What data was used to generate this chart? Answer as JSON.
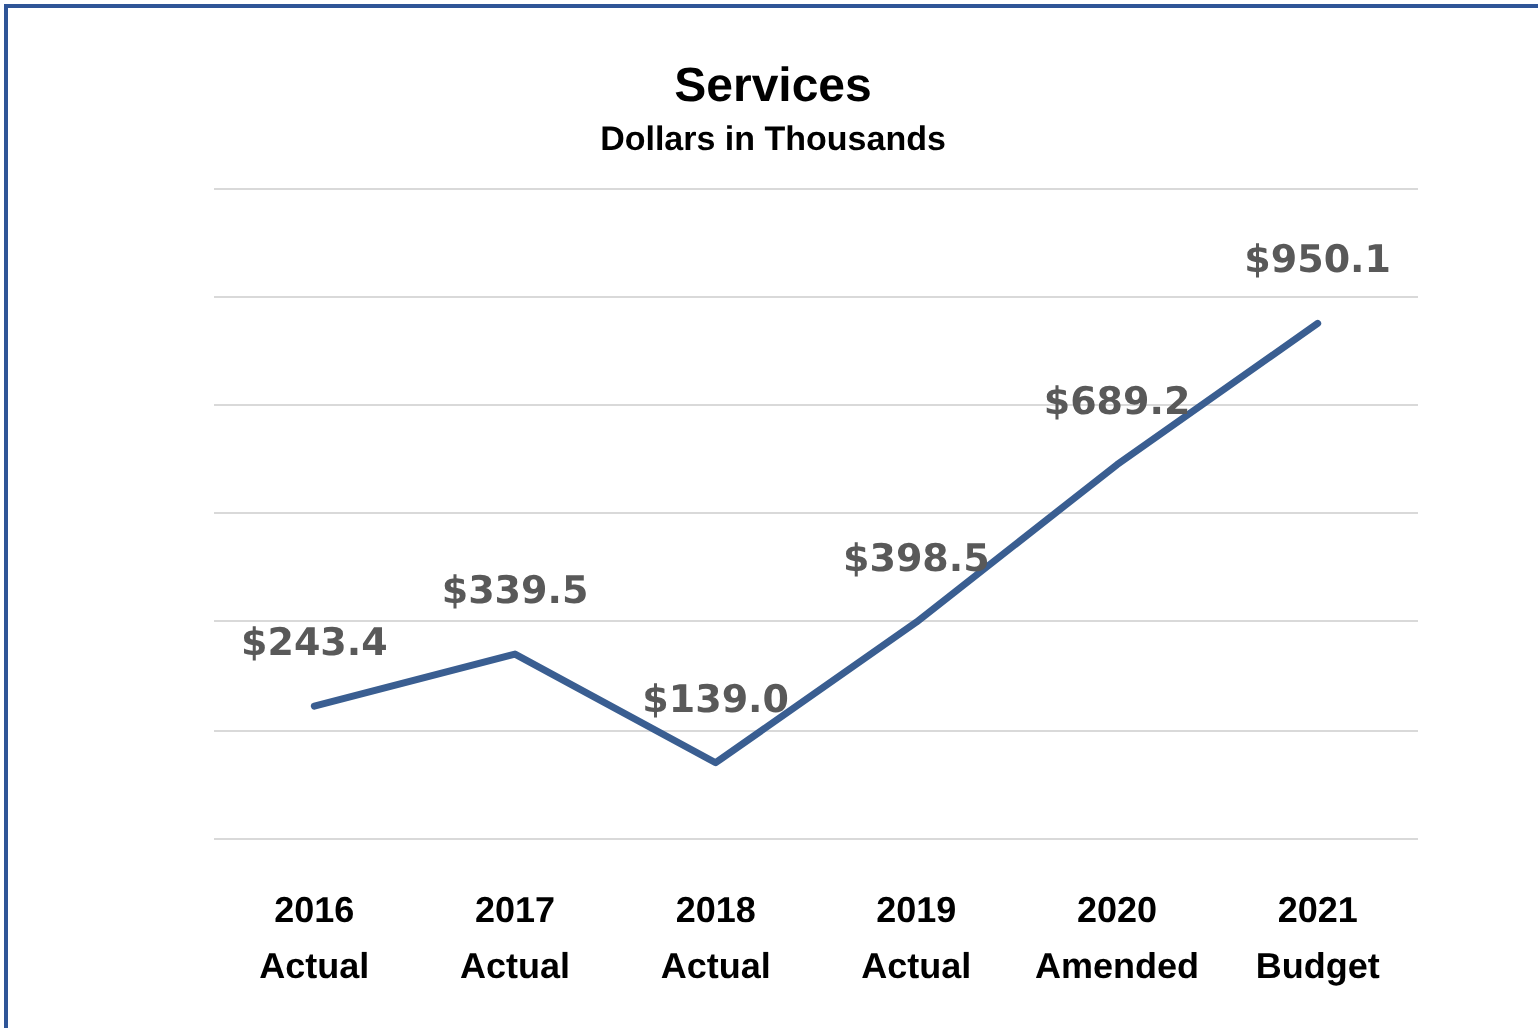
{
  "chart_data": {
    "type": "line",
    "title": "Services",
    "subtitle": "Dollars in Thousands",
    "categories": [
      "2016\nActual",
      "2017\nActual",
      "2018\nActual",
      "2019\nActual",
      "2020\nAmended",
      "2021\nBudget"
    ],
    "values": [
      243.4,
      339.5,
      139.0,
      398.5,
      689.2,
      950.1
    ],
    "value_labels": [
      "$243.4",
      "$339.5",
      "$139.0",
      "$398.5",
      "$689.2",
      "$950.1"
    ],
    "color": "#3a5e91",
    "ylim": [
      0,
      1200
    ],
    "yticks": [
      {
        "value": 0,
        "label": null
      },
      {
        "value": 200,
        "label": null
      },
      {
        "value": 400,
        "label": null
      },
      {
        "value": 600,
        "label": null
      },
      {
        "value": 800,
        "label": null
      },
      {
        "value": 1000,
        "label": null
      },
      {
        "value": 1200,
        "label": null
      }
    ],
    "grid": "y",
    "tick_labels": "x",
    "marker": "none",
    "line_style": "solid"
  }
}
